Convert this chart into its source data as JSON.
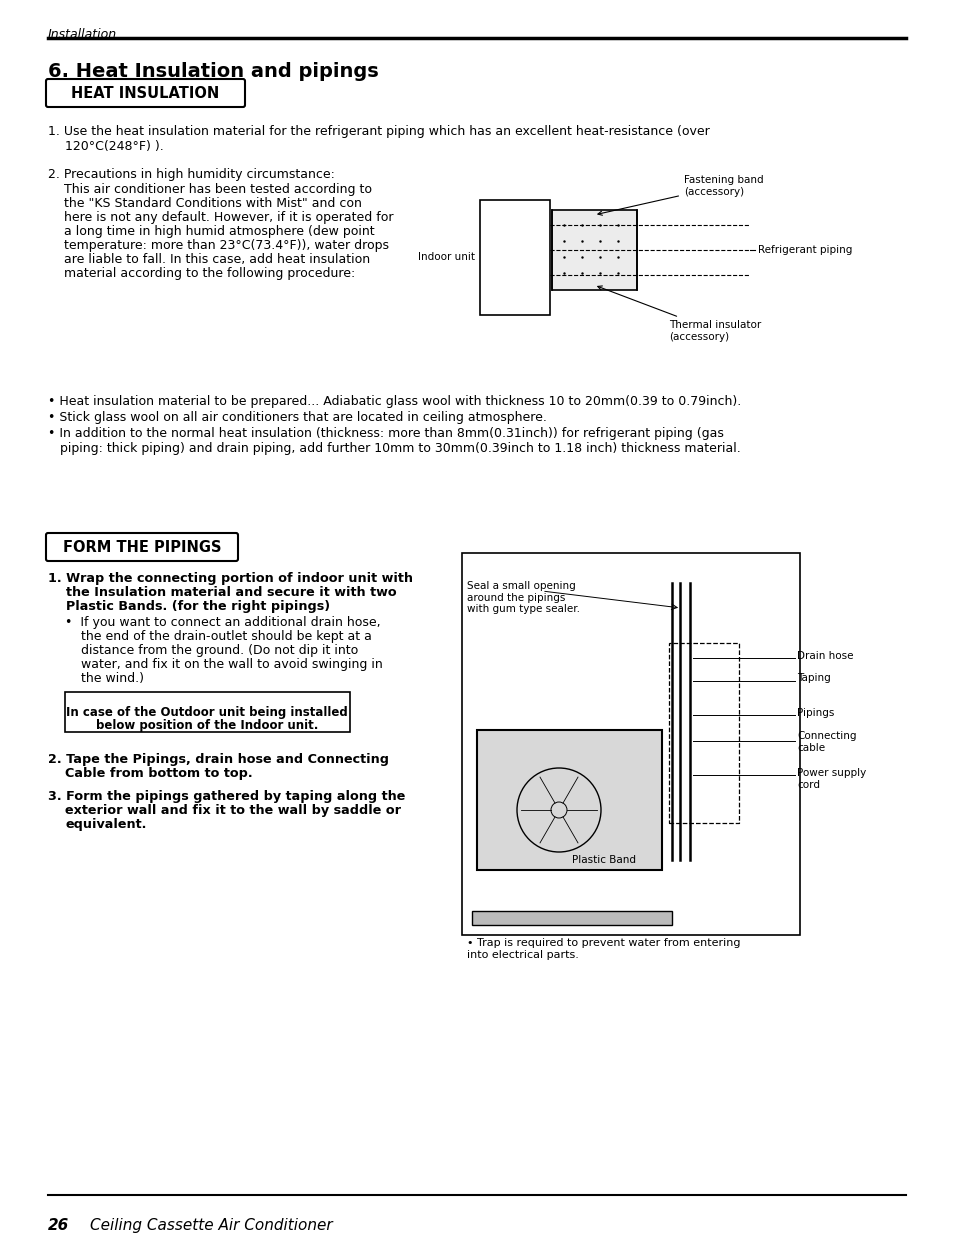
{
  "page_width": 9.54,
  "page_height": 12.43,
  "bg_color": "#ffffff",
  "header_text": "Installation",
  "title": "6. Heat Insulation and pipings",
  "section1_label": "HEAT INSULATION",
  "section2_label": "FORM THE PIPINGS",
  "bullet1": "• Heat insulation material to be prepared... Adiabatic glass wool with thickness 10 to 20mm(0.39 to 0.79inch).",
  "bullet2": "• Stick glass wool on all air conditioners that are located in ceiling atmosphere.",
  "footer_page": "26",
  "footer_text": "Ceiling Cassette Air Conditioner",
  "diagram1_labels": {
    "fastening_band": "Fastening band\n(accessory)",
    "refrigerant_piping": "Refrigerant piping",
    "thermal_insulator": "Thermal insulator\n(accessory)",
    "indoor_unit": "Indoor unit"
  },
  "diagram2_labels": {
    "seal": "Seal a small opening\naround the pipings\nwith gum type sealer.",
    "drain_hose": "Drain hose",
    "taping": "Taping",
    "pipings": "Pipings",
    "connecting_cable": "Connecting\ncable",
    "power_supply": "Power supply\ncord",
    "plastic_band": "Plastic Band",
    "trap_note": "• Trap is required to prevent water from entering\ninto electrical parts."
  }
}
